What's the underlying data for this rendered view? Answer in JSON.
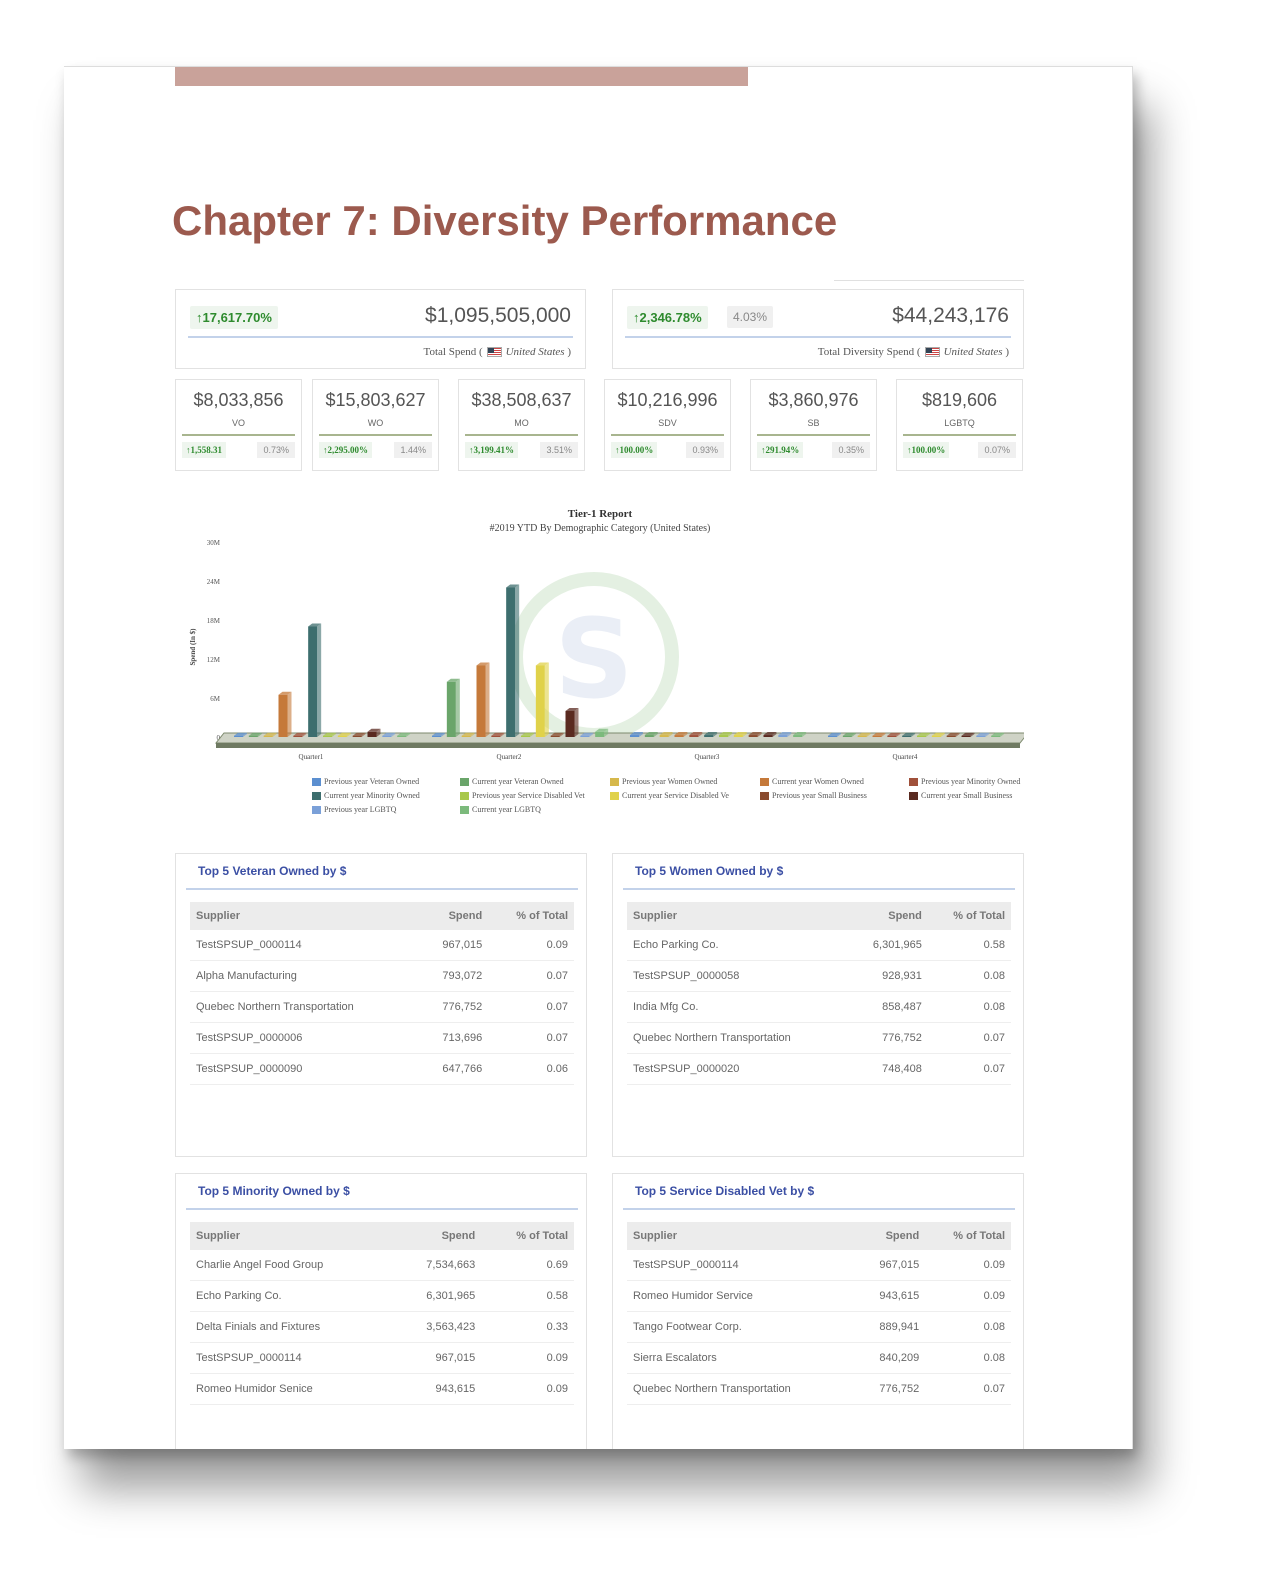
{
  "chapter_title": "Chapter 7: Diversity Performance",
  "kpis": {
    "total_spend": {
      "pct": "17,617.70%",
      "amount": "$1,095,505,000",
      "caption_prefix": "Total Spend (",
      "country": "United States",
      "caption_suffix": ")"
    },
    "diversity_spend": {
      "pct": "2,346.78%",
      "share": "4.03%",
      "amount": "$44,243,176",
      "caption_prefix": "Total Diversity Spend (",
      "country": "United States",
      "caption_suffix": ")"
    }
  },
  "categories": [
    {
      "amount": "$8,033,856",
      "code": "VO",
      "pct": "1,558.31",
      "share": "0.73%"
    },
    {
      "amount": "$15,803,627",
      "code": "WO",
      "pct": "2,295.00%",
      "share": "1.44%"
    },
    {
      "amount": "$38,508,637",
      "code": "MO",
      "pct": "3,199.41%",
      "share": "3.51%"
    },
    {
      "amount": "$10,216,996",
      "code": "SDV",
      "pct": "100.00%",
      "share": "0.93%"
    },
    {
      "amount": "$3,860,976",
      "code": "SB",
      "pct": "291.94%",
      "share": "0.35%"
    },
    {
      "amount": "$819,606",
      "code": "LGBTQ",
      "pct": "100.00%",
      "share": "0.07%"
    }
  ],
  "chart_data": {
    "type": "bar",
    "title": "Tier-1 Report",
    "subtitle": "#2019 YTD By Demographic Category (United States)",
    "ylabel": "Spend (In $)",
    "yticks": [
      "0",
      "6M",
      "12M",
      "18M",
      "24M",
      "30M"
    ],
    "ylim": [
      0,
      30
    ],
    "categories": [
      "Quarter1",
      "Quarter2",
      "Quarter3",
      "Quarter4"
    ],
    "series": [
      {
        "name": "Previous year Veteran Owned",
        "color": "#5b8fd0",
        "values": [
          0.2,
          0.2,
          0.3,
          0.2
        ]
      },
      {
        "name": "Current year Veteran Owned",
        "color": "#6aa56a",
        "values": [
          0.2,
          8.5,
          0.3,
          0.2
        ]
      },
      {
        "name": "Previous year Women Owned",
        "color": "#d6b84b",
        "values": [
          0.2,
          0.2,
          0.3,
          0.2
        ]
      },
      {
        "name": "Current year Women Owned",
        "color": "#c5793a",
        "values": [
          6.5,
          11,
          0.3,
          0.2
        ]
      },
      {
        "name": "Previous year Minority Owned",
        "color": "#a0503a",
        "values": [
          0.2,
          0.2,
          0.3,
          0.2
        ]
      },
      {
        "name": "Current year Minority Owned",
        "color": "#3d6e6e",
        "values": [
          17,
          23,
          0.3,
          0.2
        ]
      },
      {
        "name": "Previous year Service Disabled Vet",
        "color": "#a8c84a",
        "values": [
          0.2,
          0.2,
          0.3,
          0.2
        ]
      },
      {
        "name": "Current year Service Disabled Vet",
        "color": "#e0d24a",
        "values": [
          0.2,
          11,
          0.3,
          0.2
        ]
      },
      {
        "name": "Previous year Small Business",
        "color": "#8a4b2e",
        "values": [
          0.2,
          0.2,
          0.3,
          0.2
        ]
      },
      {
        "name": "Current year Small Business",
        "color": "#5a2a20",
        "values": [
          0.8,
          4,
          0.3,
          0.2
        ]
      },
      {
        "name": "Previous year LGBTQ",
        "color": "#7aa0d8",
        "values": [
          0.2,
          0.2,
          0.3,
          0.2
        ]
      },
      {
        "name": "Current year LGBTQ",
        "color": "#7cba7c",
        "values": [
          0.2,
          0.8,
          0.3,
          0.2
        ]
      }
    ],
    "legend_position": "bottom"
  },
  "legend": [
    "Previous year Veteran Owned",
    "Current year Veteran Owned",
    "Previous year Women Owned",
    "Current year Women Owned",
    "Previous year Minority Owned",
    "Current year Minority Owned",
    "Previous year Service Disabled Vet",
    "Current year Service Disabled Ve",
    "Previous year Small Business",
    "Current year Small Business",
    "Previous year LGBTQ",
    "Current year LGBTQ"
  ],
  "panels": [
    {
      "title": "Top 5 Veteran Owned by $",
      "headers": [
        "Supplier",
        "Spend",
        "% of Total"
      ],
      "rows": [
        [
          "TestSPSUP_0000114",
          "967,015",
          "0.09"
        ],
        [
          "Alpha Manufacturing",
          "793,072",
          "0.07"
        ],
        [
          "Quebec Northern Transportation",
          "776,752",
          "0.07"
        ],
        [
          "TestSPSUP_0000006",
          "713,696",
          "0.07"
        ],
        [
          "TestSPSUP_0000090",
          "647,766",
          "0.06"
        ]
      ]
    },
    {
      "title": "Top 5 Women Owned by $",
      "headers": [
        "Supplier",
        "Spend",
        "% of Total"
      ],
      "rows": [
        [
          "Echo Parking Co.",
          "6,301,965",
          "0.58"
        ],
        [
          "TestSPSUP_0000058",
          "928,931",
          "0.08"
        ],
        [
          "India Mfg Co.",
          "858,487",
          "0.08"
        ],
        [
          "Quebec Northern Transportation",
          "776,752",
          "0.07"
        ],
        [
          "TestSPSUP_0000020",
          "748,408",
          "0.07"
        ]
      ]
    },
    {
      "title": "Top 5 Minority Owned by $",
      "headers": [
        "Supplier",
        "Spend",
        "% of Total"
      ],
      "rows": [
        [
          "Charlie Angel Food Group",
          "7,534,663",
          "0.69"
        ],
        [
          "Echo Parking Co.",
          "6,301,965",
          "0.58"
        ],
        [
          "Delta Finials and Fixtures",
          "3,563,423",
          "0.33"
        ],
        [
          "TestSPSUP_0000114",
          "967,015",
          "0.09"
        ],
        [
          "Romeo Humidor Senice",
          "943,615",
          "0.09"
        ]
      ]
    },
    {
      "title": "Top 5 Service Disabled Vet by $",
      "headers": [
        "Supplier",
        "Spend",
        "% of Total"
      ],
      "rows": [
        [
          "TestSPSUP_0000114",
          "967,015",
          "0.09"
        ],
        [
          "Romeo Humidor Service",
          "943,615",
          "0.09"
        ],
        [
          "Tango Footwear Corp.",
          "889,941",
          "0.08"
        ],
        [
          "Sierra Escalators",
          "840,209",
          "0.08"
        ],
        [
          "Quebec Northern Transportation",
          "776,752",
          "0.07"
        ]
      ]
    }
  ]
}
